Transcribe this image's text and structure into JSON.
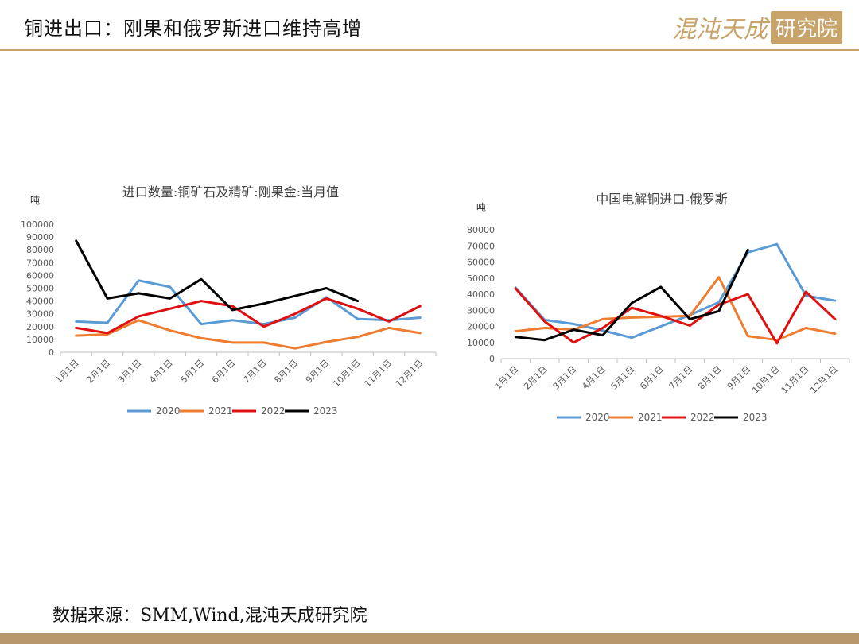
{
  "header": {
    "title": "铜进出口：刚果和俄罗斯进口维持高增",
    "logo_main": "混沌天成",
    "logo_sub": "研究院"
  },
  "footer": {
    "source": "数据来源：SMM,Wind,混沌天成研究院"
  },
  "colors": {
    "accent": "#c9a46a",
    "bottom_bar": "#b8986a",
    "s2020": "#5b9bd5",
    "s2021": "#ed7d31",
    "s2022": "#e01010",
    "s2023": "#000000"
  },
  "chart_data": [
    {
      "type": "line",
      "title": "进口数量:铜矿石及精矿:刚果金:当月值",
      "ylabel": "吨",
      "ylim": [
        0,
        100000
      ],
      "yticks": [
        0,
        10000,
        20000,
        30000,
        40000,
        50000,
        60000,
        70000,
        80000,
        90000,
        100000
      ],
      "categories": [
        "1月1日",
        "2月1日",
        "3月1日",
        "4月1日",
        "5月1日",
        "6月1日",
        "7月1日",
        "8月1日",
        "9月1日",
        "10月1日",
        "11月1日",
        "12月1日"
      ],
      "legend": "bottom",
      "series": [
        {
          "name": "2020",
          "color": "#5b9bd5",
          "values": [
            24000,
            23000,
            56000,
            51000,
            22000,
            25000,
            22000,
            27000,
            43000,
            26000,
            25000,
            27000
          ]
        },
        {
          "name": "2021",
          "color": "#ed7d31",
          "values": [
            13000,
            14000,
            25000,
            17000,
            11000,
            7500,
            7500,
            3000,
            8000,
            12000,
            19000,
            15000
          ]
        },
        {
          "name": "2022",
          "color": "#e01010",
          "values": [
            19000,
            15000,
            28000,
            34000,
            40000,
            36000,
            20000,
            30000,
            42000,
            34000,
            24000,
            36000
          ]
        },
        {
          "name": "2023",
          "color": "#000000",
          "values": [
            87000,
            42000,
            46000,
            42000,
            57000,
            33000,
            38000,
            44000,
            50000,
            40000,
            null,
            null
          ]
        }
      ]
    },
    {
      "type": "line",
      "title": "中国电解铜进口-俄罗斯",
      "ylabel": "吨",
      "ylim": [
        0,
        80000
      ],
      "yticks": [
        0,
        10000,
        20000,
        30000,
        40000,
        50000,
        60000,
        70000,
        80000
      ],
      "categories": [
        "1月1日",
        "2月1日",
        "3月1日",
        "4月1日",
        "5月1日",
        "6月1日",
        "7月1日",
        "8月1日",
        "9月1日",
        "10月1日",
        "11月1日",
        "12月1日"
      ],
      "legend": "bottom",
      "series": [
        {
          "name": "2020",
          "color": "#5b9bd5",
          "values": [
            44000,
            24000,
            21500,
            17500,
            13000,
            20000,
            27000,
            35000,
            66000,
            71000,
            39000,
            36000
          ]
        },
        {
          "name": "2021",
          "color": "#ed7d31",
          "values": [
            17000,
            19000,
            18000,
            24500,
            25500,
            26000,
            26500,
            50500,
            14000,
            11500,
            19000,
            15500
          ]
        },
        {
          "name": "2022",
          "color": "#e01010",
          "values": [
            43500,
            23000,
            10000,
            19000,
            31500,
            26500,
            20500,
            33500,
            40000,
            9500,
            41500,
            24500
          ]
        },
        {
          "name": "2023",
          "color": "#000000",
          "values": [
            13500,
            11500,
            18000,
            14500,
            34500,
            44500,
            24500,
            29500,
            67500,
            null,
            null,
            null
          ]
        }
      ]
    }
  ]
}
